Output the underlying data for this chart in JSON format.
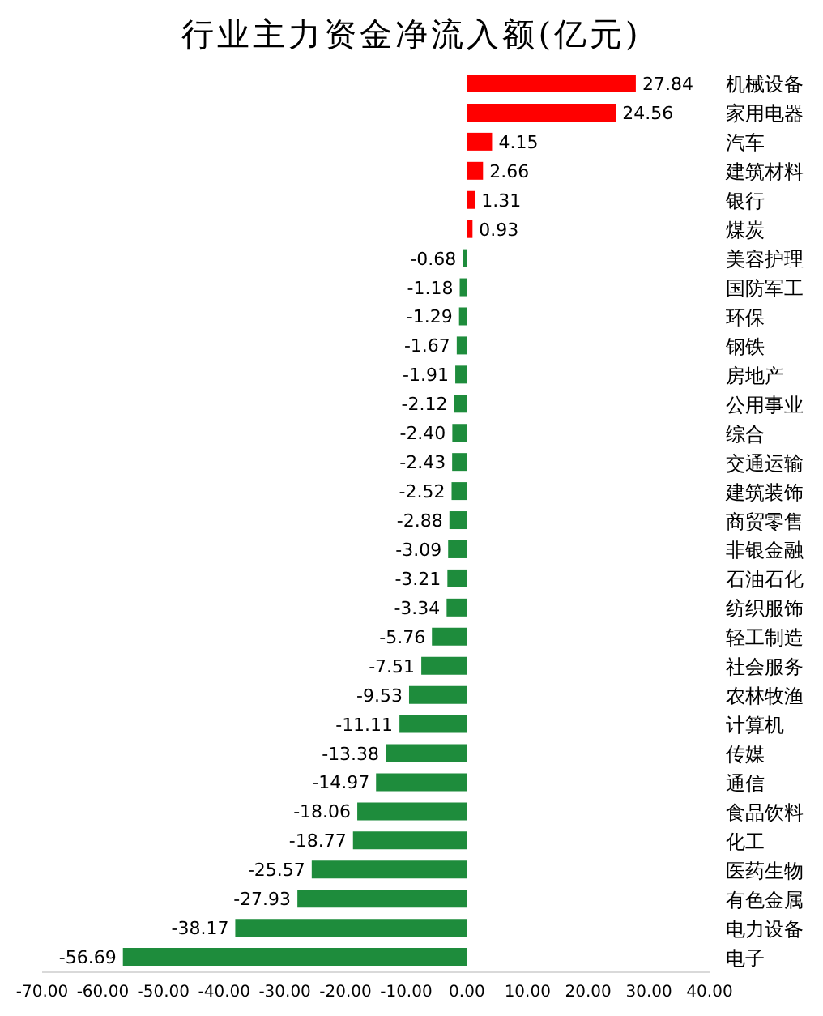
{
  "chart_data": {
    "type": "bar",
    "orientation": "horizontal",
    "title": "行业主力资金净流入额(亿元)",
    "categories": [
      "机械设备",
      "家用电器",
      "汽车",
      "建筑材料",
      "银行",
      "煤炭",
      "美容护理",
      "国防军工",
      "环保",
      "钢铁",
      "房地产",
      "公用事业",
      "综合",
      "交通运输",
      "建筑装饰",
      "商贸零售",
      "非银金融",
      "石油石化",
      "纺织服饰",
      "轻工制造",
      "社会服务",
      "农林牧渔",
      "计算机",
      "传媒",
      "通信",
      "食品饮料",
      "化工",
      "医药生物",
      "有色金属",
      "电力设备",
      "电子"
    ],
    "values": [
      27.84,
      24.56,
      4.15,
      2.66,
      1.31,
      0.93,
      -0.68,
      -1.18,
      -1.29,
      -1.67,
      -1.91,
      -2.12,
      -2.4,
      -2.43,
      -2.52,
      -2.88,
      -3.09,
      -3.21,
      -3.34,
      -5.76,
      -7.51,
      -9.53,
      -11.11,
      -13.38,
      -14.97,
      -18.06,
      -18.77,
      -25.57,
      -27.93,
      -38.17,
      -56.69
    ],
    "value_labels": [
      "27.84",
      "24.56",
      "4.15",
      "2.66",
      "1.31",
      "0.93",
      "-0.68",
      "-1.18",
      "-1.29",
      "-1.67",
      "-1.91",
      "-2.12",
      "-2.40",
      "-2.43",
      "-2.52",
      "-2.88",
      "-3.09",
      "-3.21",
      "-3.34",
      "-5.76",
      "-7.51",
      "-9.53",
      "-11.11",
      "-13.38",
      "-14.97",
      "-18.06",
      "-18.77",
      "-25.57",
      "-27.93",
      "-38.17",
      "-56.69"
    ],
    "colors": [
      "#ff0000",
      "#ff0000",
      "#ff0000",
      "#ff0000",
      "#ff0000",
      "#ff0000",
      "#1e8c3c",
      "#1e8c3c",
      "#1e8c3c",
      "#1e8c3c",
      "#1e8c3c",
      "#1e8c3c",
      "#1e8c3c",
      "#1e8c3c",
      "#1e8c3c",
      "#1e8c3c",
      "#1e8c3c",
      "#1e8c3c",
      "#1e8c3c",
      "#1e8c3c",
      "#1e8c3c",
      "#1e8c3c",
      "#1e8c3c",
      "#1e8c3c",
      "#1e8c3c",
      "#1e8c3c",
      "#1e8c3c",
      "#1e8c3c",
      "#1e8c3c",
      "#1e8c3c",
      "#1e8c3c"
    ],
    "xlim": [
      -70,
      40
    ],
    "xticks": [
      {
        "value": -70,
        "label": "-70.00"
      },
      {
        "value": -60,
        "label": "-60.00"
      },
      {
        "value": -50,
        "label": "-50.00"
      },
      {
        "value": -40,
        "label": "-40.00"
      },
      {
        "value": -30,
        "label": "-30.00"
      },
      {
        "value": -20,
        "label": "-20.00"
      },
      {
        "value": -10,
        "label": "-10.00"
      },
      {
        "value": 0,
        "label": "0.00"
      },
      {
        "value": 10,
        "label": "10.00"
      },
      {
        "value": 20,
        "label": "20.00"
      },
      {
        "value": 30,
        "label": "30.00"
      },
      {
        "value": 40,
        "label": "40.00"
      }
    ],
    "grid": false,
    "legend": false
  }
}
